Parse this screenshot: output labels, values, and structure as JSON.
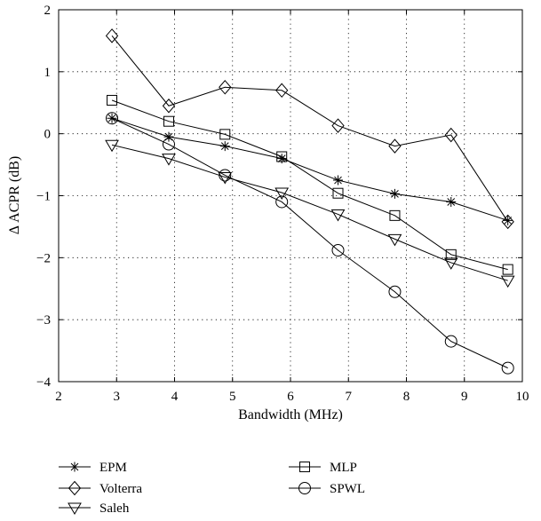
{
  "chart_data": {
    "type": "line",
    "title": "",
    "xlabel": "Bandwidth (MHz)",
    "ylabel": "Δ ACPR (dB)",
    "xlim": [
      2,
      10
    ],
    "ylim": [
      -4,
      2
    ],
    "xticks": [
      2,
      3,
      4,
      5,
      6,
      7,
      8,
      9,
      10
    ],
    "yticks": [
      -4,
      -3,
      -2,
      -1,
      0,
      1,
      2
    ],
    "xtick_labels": [
      "2",
      "3",
      "4",
      "5",
      "6",
      "7",
      "8",
      "9",
      "10"
    ],
    "ytick_labels": [
      "−4",
      "−3",
      "−2",
      "−1",
      "0",
      "1",
      "2"
    ],
    "grid": true,
    "legend_position": "bottom",
    "x": [
      2.92,
      3.9,
      4.87,
      5.85,
      6.82,
      7.8,
      8.77,
      9.75
    ],
    "series": [
      {
        "name": "EPM",
        "marker": "asterisk",
        "values": [
          0.25,
          -0.05,
          -0.2,
          -0.4,
          -0.75,
          -0.97,
          -1.1,
          -1.4
        ]
      },
      {
        "name": "Volterra",
        "marker": "diamond",
        "values": [
          1.58,
          0.45,
          0.75,
          0.7,
          0.13,
          -0.2,
          -0.02,
          -1.42
        ]
      },
      {
        "name": "Saleh",
        "marker": "triangle-down",
        "values": [
          -0.18,
          -0.4,
          -0.7,
          -0.95,
          -1.3,
          -1.7,
          -2.08,
          -2.37
        ]
      },
      {
        "name": "MLP",
        "marker": "square",
        "values": [
          0.54,
          0.2,
          -0.01,
          -0.37,
          -0.96,
          -1.32,
          -1.95,
          -2.19
        ]
      },
      {
        "name": "SPWL",
        "marker": "circle",
        "values": [
          0.25,
          -0.17,
          -0.67,
          -1.1,
          -1.88,
          -2.55,
          -3.35,
          -3.78
        ]
      }
    ],
    "legend_order": [
      "EPM",
      "MLP",
      "Volterra",
      "SPWL",
      "Saleh"
    ],
    "line_color": "#000000"
  }
}
